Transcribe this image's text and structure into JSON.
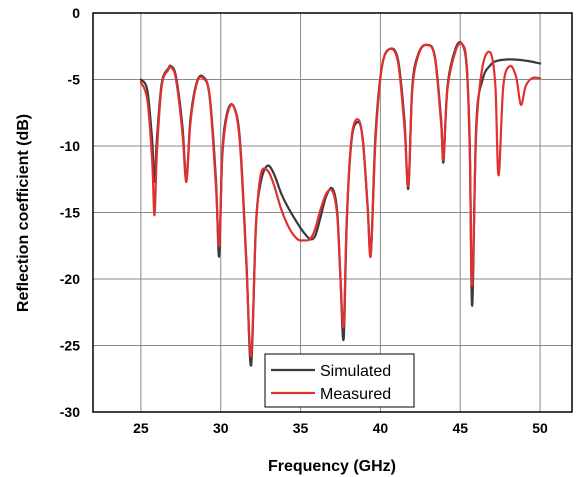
{
  "chart_data": {
    "type": "line",
    "xlabel": "Frequency (GHz)",
    "ylabel": "Reflection coefficient (dB)",
    "xlim": [
      22,
      52
    ],
    "ylim": [
      -30,
      0
    ],
    "x_ticks": [
      25,
      30,
      35,
      40,
      45,
      50
    ],
    "y_ticks": [
      0,
      -5,
      -10,
      -15,
      -20,
      -25,
      -30
    ],
    "grid": true,
    "legend_position": "bottom-center",
    "series": [
      {
        "name": "Simulated",
        "color": "#3a3a3a",
        "x": [
          25,
          25.4,
          25.7,
          25.85,
          26.0,
          26.3,
          26.7,
          26.9,
          27.2,
          27.6,
          27.85,
          28.1,
          28.5,
          28.9,
          29.3,
          29.7,
          29.9,
          30.1,
          30.4,
          30.8,
          31.2,
          31.6,
          31.9,
          32.2,
          32.5,
          32.9,
          33.3,
          33.8,
          34.3,
          34.8,
          35.2,
          35.6,
          35.9,
          36.2,
          36.6,
          37.0,
          37.3,
          37.5,
          37.7,
          37.9,
          38.2,
          38.6,
          38.9,
          39.2,
          39.4,
          39.7,
          40.1,
          40.6,
          41.1,
          41.5,
          41.75,
          42.0,
          42.4,
          42.9,
          43.4,
          43.8,
          43.95,
          44.2,
          44.7,
          45.1,
          45.4,
          45.6,
          45.75,
          46.0,
          46.4,
          46.9,
          47.3,
          47.8,
          48.5,
          49.2,
          50
        ],
        "y": [
          -5,
          -5.8,
          -9.5,
          -12.7,
          -9.5,
          -5.3,
          -4.2,
          -4.0,
          -4.8,
          -8.5,
          -12.5,
          -8.0,
          -5.2,
          -4.8,
          -6.2,
          -12.5,
          -18.3,
          -10.5,
          -7.5,
          -7.0,
          -9.5,
          -18.5,
          -26.5,
          -16.0,
          -12.8,
          -11.5,
          -12.0,
          -13.6,
          -14.8,
          -15.8,
          -16.5,
          -17.0,
          -16.8,
          -15.6,
          -13.8,
          -13.2,
          -15.0,
          -20.0,
          -24.5,
          -15.5,
          -9.5,
          -8.2,
          -9.5,
          -14.5,
          -18.0,
          -9.0,
          -4.0,
          -2.7,
          -3.5,
          -8.0,
          -13.2,
          -5.5,
          -3.0,
          -2.4,
          -3.2,
          -8.0,
          -11.2,
          -5.5,
          -2.7,
          -2.3,
          -4.0,
          -10.0,
          -22.0,
          -8.5,
          -5.0,
          -3.9,
          -3.6,
          -3.5,
          -3.5,
          -3.6,
          -3.8
        ]
      },
      {
        "name": "Measured",
        "color": "#e03030",
        "x": [
          25,
          25.4,
          25.7,
          25.85,
          26.0,
          26.3,
          26.7,
          26.9,
          27.2,
          27.6,
          27.85,
          28.1,
          28.5,
          28.9,
          29.3,
          29.7,
          29.9,
          30.1,
          30.4,
          30.8,
          31.2,
          31.6,
          31.9,
          32.2,
          32.5,
          32.9,
          33.3,
          33.8,
          34.3,
          34.8,
          35.2,
          35.6,
          35.9,
          36.2,
          36.6,
          37.0,
          37.3,
          37.5,
          37.7,
          37.9,
          38.2,
          38.6,
          38.9,
          39.2,
          39.4,
          39.7,
          40.1,
          40.6,
          41.1,
          41.5,
          41.75,
          42.0,
          42.4,
          42.9,
          43.4,
          43.8,
          43.95,
          44.2,
          44.7,
          45.1,
          45.4,
          45.6,
          45.75,
          46.0,
          46.4,
          46.9,
          47.2,
          47.4,
          47.7,
          48.1,
          48.5,
          48.8,
          49.1,
          49.5,
          50
        ],
        "y": [
          -5.2,
          -6.5,
          -11.0,
          -15.2,
          -10.5,
          -5.5,
          -4.3,
          -4.1,
          -5.0,
          -9.0,
          -12.7,
          -8.3,
          -5.3,
          -4.9,
          -6.3,
          -13.0,
          -17.5,
          -10.8,
          -7.7,
          -7.0,
          -9.8,
          -18.8,
          -25.8,
          -16.2,
          -12.2,
          -11.8,
          -12.8,
          -14.8,
          -16.2,
          -17.0,
          -17.1,
          -17.0,
          -16.3,
          -15.0,
          -13.6,
          -13.4,
          -15.3,
          -20.0,
          -23.5,
          -15.2,
          -9.3,
          -8.0,
          -9.6,
          -14.6,
          -18.2,
          -9.5,
          -4.0,
          -2.7,
          -3.7,
          -8.5,
          -13.0,
          -5.8,
          -3.1,
          -2.4,
          -3.3,
          -8.3,
          -11.0,
          -5.7,
          -2.9,
          -2.3,
          -3.8,
          -10.5,
          -20.5,
          -9.0,
          -4.0,
          -3.0,
          -5.5,
          -12.2,
          -5.5,
          -4.0,
          -4.8,
          -6.9,
          -5.5,
          -4.9,
          -4.9
        ]
      }
    ]
  }
}
